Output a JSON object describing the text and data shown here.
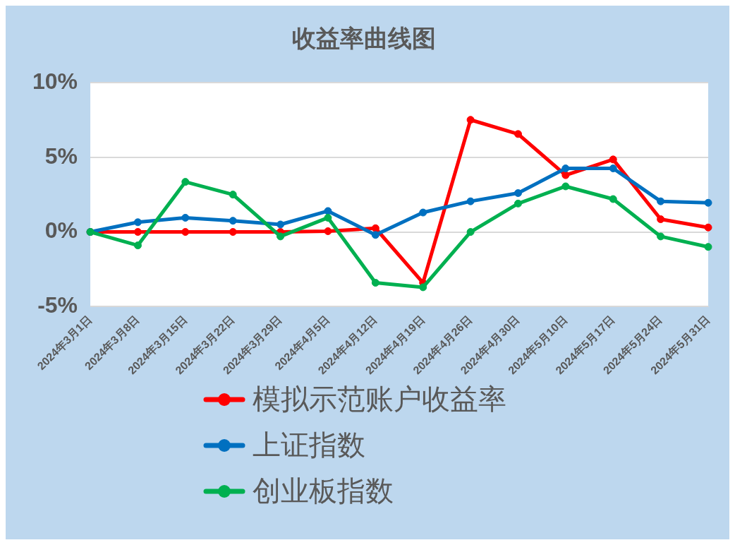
{
  "chart_data": {
    "type": "line",
    "title": "收益率曲线图",
    "categories": [
      "2024年3月1日",
      "2024年3月8日",
      "2024年3月15日",
      "2024年3月22日",
      "2024年3月29日",
      "2024年4月5日",
      "2024年4月12日",
      "2024年4月19日",
      "2024年4月26日",
      "2024年4月30日",
      "2024年5月10日",
      "2024年5月17日",
      "2024年5月24日",
      "2024年5月31日"
    ],
    "series": [
      {
        "name": "模拟示范账户收益率",
        "color": "#ff0000",
        "values": [
          0,
          0,
          0,
          0,
          0,
          0.05,
          0.25,
          -3.4,
          7.5,
          6.55,
          3.8,
          4.85,
          0.85,
          0.3
        ]
      },
      {
        "name": "上证指数",
        "color": "#0070c0",
        "values": [
          0,
          0.65,
          0.95,
          0.75,
          0.5,
          1.4,
          -0.2,
          1.3,
          2.05,
          2.6,
          4.25,
          4.25,
          2.05,
          1.95
        ]
      },
      {
        "name": "创业板指数",
        "color": "#00b050",
        "values": [
          0,
          -0.9,
          3.35,
          2.5,
          -0.3,
          0.95,
          -3.4,
          -3.7,
          0,
          1.9,
          3.05,
          2.2,
          -0.3,
          -1.0
        ]
      }
    ],
    "ylim": [
      -5,
      10
    ],
    "yticks": [
      {
        "value": -5,
        "label": "-5%"
      },
      {
        "value": 0,
        "label": "0%"
      },
      {
        "value": 5,
        "label": "5%"
      },
      {
        "value": 10,
        "label": "10%"
      }
    ],
    "grid": "y",
    "legend": "bottom",
    "marker": "circle",
    "line_style": "solid"
  }
}
